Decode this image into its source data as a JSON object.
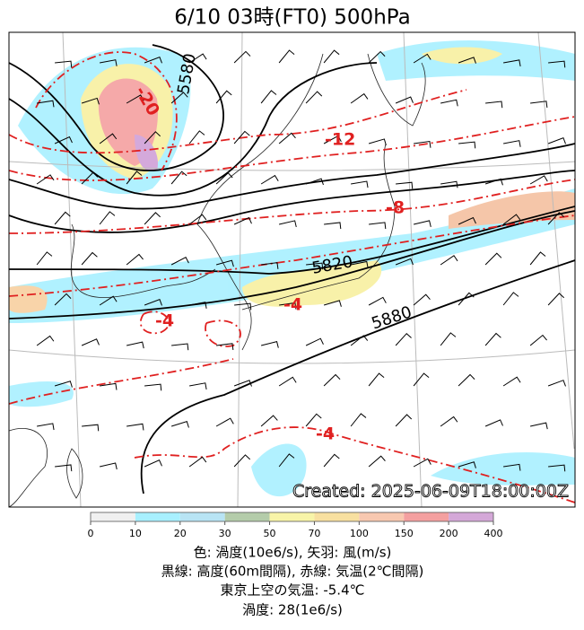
{
  "title": "6/10  03時(FT0)     500hPa",
  "created": "Created: 2025-06-09T18:00:00Z",
  "height_labels": [
    "5580",
    "5820",
    "5880"
  ],
  "temperature_labels": [
    "-20",
    "-12",
    "-8",
    "-4",
    "-4",
    "-4"
  ],
  "colorbar": {
    "ticks": [
      "0",
      "10",
      "20",
      "30",
      "50",
      "70",
      "100",
      "150",
      "200",
      "400"
    ]
  },
  "caption": [
    "色: 渦度(10e6/s),  矢羽: 風(m/s)",
    "黒線: 高度(60m間隔),  赤線: 気温(2℃間隔)",
    "東京上空の気温: -5.4℃",
    "渦度: 28(1e6/s)"
  ]
}
